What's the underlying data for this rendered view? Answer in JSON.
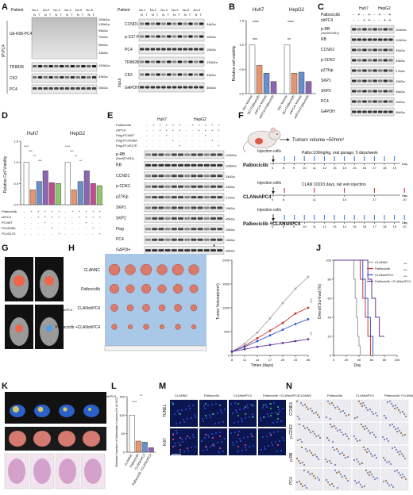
{
  "panel_letters": [
    "A",
    "B",
    "C",
    "D",
    "E",
    "F",
    "G",
    "H",
    "I",
    "J",
    "K",
    "L",
    "M",
    "N"
  ],
  "panelA": {
    "patient_label": "Patient",
    "patients": [
      "No.1",
      "No.2",
      "No.3",
      "No.4",
      "No.5",
      "No.6"
    ],
    "nt": [
      "N",
      "T"
    ],
    "ip_label": "IP:PC4",
    "input_label": "Input",
    "left_rows": [
      "Ub-K68-PC4",
      "TRIM28",
      "CK2",
      "PC4"
    ],
    "left_kda": [
      "150kDa",
      "130kDa",
      "95kDa",
      "72kDa",
      "55kDa",
      "43kDa",
      "130kDa",
      "43kDa",
      "15kDa"
    ],
    "right_rows": [
      "CCND1",
      "p-S17-PC4",
      "PC4",
      "TRIM28",
      "CK2",
      "GAPDH"
    ],
    "right_kda": [
      "34kDa",
      "15kDa",
      "15kDa",
      "130kDa",
      "43kDa",
      "36kDa"
    ]
  },
  "panelB": {
    "cells": [
      "Huh7",
      "HepG2"
    ],
    "ylabel": "Relative cell viability",
    "yticks": [
      "0.0",
      "0.5",
      "1.0",
      "1.5"
    ],
    "groups": [
      "NC+Vehicle",
      "NC+Palbociclib",
      "shPC4+Vehicle",
      "shPC4+Palbociclib"
    ],
    "sig": [
      "****",
      "***",
      "****",
      "**"
    ],
    "chart_data": {
      "type": "bar",
      "categories": [
        "NC+Vehicle",
        "NC+Palbociclib",
        "shPC4+Vehicle",
        "shPC4+Palbociclib"
      ],
      "series": [
        {
          "name": "Huh7",
          "values": [
            1.0,
            0.58,
            0.42,
            0.25
          ]
        },
        {
          "name": "HepG2",
          "values": [
            1.0,
            0.42,
            0.44,
            0.25
          ]
        }
      ],
      "ylabel": "Relative cell viability",
      "ylim": [
        0,
        1.5
      ]
    }
  },
  "panelC": {
    "cells": [
      "Huh7",
      "HepG2"
    ],
    "treat_rows": [
      "Palbociclib",
      "shPC4"
    ],
    "treat_signs": [
      [
        "-",
        "+",
        "-",
        "+",
        "-",
        "+",
        "-",
        "+"
      ],
      [
        "-",
        "-",
        "+",
        "+",
        "-",
        "-",
        "+",
        "+"
      ]
    ],
    "rows": [
      "p-RB",
      "RB",
      "CCND1",
      "p-CDK2",
      "p27Kip",
      "SKP1",
      "SKP2",
      "PC4",
      "GAPDH"
    ],
    "sub_label": "(Ser807/811)",
    "kda": [
      "110kDa",
      "110kDa",
      "34kDa",
      "33kDa",
      "27kDa",
      "19kDa",
      "45kDa",
      "15kDa",
      "36kDa"
    ]
  },
  "panelD": {
    "cells": [
      "Huh7",
      "HepG2"
    ],
    "ylabel": "Relative Cell Viability",
    "yticks": [
      "0.0",
      "0.5",
      "1.0",
      "1.5"
    ],
    "sig": [
      "****",
      "***",
      "**",
      "***",
      "****",
      "***",
      "**",
      "**"
    ],
    "row_labels": [
      "Palbociclib",
      "shPC4",
      "PC4WT",
      "PC4S56A",
      "PC4S17E"
    ],
    "signs": [
      [
        "-",
        "+",
        "+",
        "+",
        "+",
        "+",
        "-",
        "+",
        "+",
        "+",
        "+",
        "+"
      ],
      [
        "-",
        "-",
        "+",
        "+",
        "+",
        "+",
        "-",
        "-",
        "+",
        "+",
        "+",
        "+"
      ],
      [
        "-",
        "-",
        "-",
        "+",
        "-",
        "-",
        "-",
        "-",
        "-",
        "+",
        "-",
        "-"
      ],
      [
        "-",
        "-",
        "-",
        "-",
        "+",
        "-",
        "-",
        "-",
        "-",
        "-",
        "+",
        "-"
      ],
      [
        "-",
        "-",
        "-",
        "-",
        "-",
        "+",
        "-",
        "-",
        "-",
        "-",
        "-",
        "+"
      ]
    ],
    "chart_data": {
      "type": "bar",
      "categories": [
        "Vehicle",
        "Palbociclib",
        "shPC4",
        "PC4WT",
        "PC4S56A",
        "PC4S17E"
      ],
      "series": [
        {
          "name": "Huh7",
          "values": [
            1.0,
            0.35,
            0.55,
            0.8,
            0.52,
            0.5
          ]
        },
        {
          "name": "HepG2",
          "values": [
            1.0,
            0.35,
            0.55,
            0.8,
            0.5,
            0.45
          ]
        }
      ],
      "ylabel": "Relative Cell Viability",
      "ylim": [
        0,
        1.5
      ]
    }
  },
  "panelE": {
    "cells": [
      "Huh7",
      "HepG2"
    ],
    "treat_rows": [
      "Palbociclib",
      "shPC4",
      "Flag-PC4WT",
      "Flag-PC4S56A",
      "Flag-PC4S17E"
    ],
    "rows": [
      "p-RB",
      "RB",
      "CCND1",
      "p-CDK2",
      "p27Kip",
      "SKP1",
      "SKP2",
      "Flag",
      "PC4",
      "GAPDH"
    ],
    "sub_label": "(Ser807/811)",
    "kda": [
      "110kDa",
      "110kDa",
      "34kDa",
      "33kDa",
      "27kDa",
      "19kDa",
      "45kDa",
      "15kDa",
      "15kDa",
      "36kDa"
    ]
  },
  "panelF": {
    "tumor_text": "Tumors volume ≈50mm³",
    "rows": [
      {
        "name": "Palbociclib",
        "injection": "Injection cells",
        "note": "Palbo:100mg/kg, oral gavage, 5 days/week",
        "note_color": "#2a6fd6",
        "ticks": [
          "0",
          "8",
          "9",
          "10",
          "11",
          "12",
          "13",
          "14",
          "15",
          "16",
          "17",
          "18",
          "19"
        ],
        "arrow_color": "#2a6fd6"
      },
      {
        "name": "CLANshPC4",
        "injection": "Injection cells",
        "note": "CLAN:1OD/3 days, tail vein injection",
        "note_color": "#cc2222",
        "ticks": [
          "0",
          "8",
          "11",
          "14",
          "17",
          "20"
        ],
        "arrow_color": "#cc2222"
      },
      {
        "name": "Palbociclib +CLANshPC4",
        "injection": "Injection cells",
        "note": "",
        "note_color": "#111",
        "ticks": [
          "0",
          "8",
          "9",
          "10",
          "11",
          "12",
          "13",
          "14",
          "15",
          "16",
          "17",
          "18",
          "19",
          "20"
        ],
        "arrow_color": "#2a6fd6"
      }
    ],
    "day_label": "Day"
  },
  "panelG": {
    "labels": [
      "CLANNC",
      "Palbociclib",
      "CLANshPC4",
      "Palbociclib +CLANshPC4"
    ]
  },
  "panelH": {
    "labels": [
      "CLANNC",
      "Palbociclib",
      "CLANshPC4",
      "Palbociclib +CLANshPC4"
    ]
  },
  "panelI": {
    "ylabel": "Tumor Volume(mm³)",
    "xlabel": "Times (days)",
    "xticks": [
      "8",
      "11",
      "14",
      "17",
      "20",
      "23",
      "26"
    ],
    "yticks": [
      "0",
      "500",
      "1000",
      "1500",
      "2000"
    ],
    "sig": [
      "****",
      "***"
    ],
    "chart_data": {
      "type": "line",
      "x": [
        8,
        11,
        14,
        17,
        20,
        23,
        26
      ],
      "series": [
        {
          "name": "CLANNC",
          "values": [
            80,
            250,
            480,
            780,
            1100,
            1400,
            1650
          ],
          "color": "#aaaaaa"
        },
        {
          "name": "Palbociclib",
          "values": [
            80,
            200,
            360,
            520,
            680,
            880,
            1000
          ],
          "color": "#cc3333"
        },
        {
          "name": "CLANshPC4",
          "values": [
            80,
            180,
            300,
            420,
            540,
            660,
            760
          ],
          "color": "#3355cc"
        },
        {
          "name": "Palbociclib+CLANshPC4",
          "values": [
            80,
            130,
            180,
            220,
            260,
            300,
            340
          ],
          "color": "#663399"
        }
      ],
      "xlabel": "Times (days)",
      "ylabel": "Tumor Volume(mm³)",
      "ylim": [
        0,
        2000
      ]
    }
  },
  "panelJ": {
    "ylabel": "Overall Survival (%)",
    "xlabel": "Day",
    "xticks": [
      "0",
      "20",
      "40",
      "60",
      "80",
      "100"
    ],
    "yticks": [
      "0",
      "20",
      "40",
      "60",
      "80",
      "100"
    ],
    "legend": [
      "CLANNC",
      "Palbociclib",
      "CLANshPC4",
      "Palbociclib +CLANshPC4"
    ],
    "sig": [
      "***",
      "***",
      "***"
    ],
    "chart_data": {
      "type": "line",
      "series": [
        {
          "name": "CLANNC",
          "x": [
            0,
            30,
            32,
            34,
            36,
            38,
            40,
            42
          ],
          "values": [
            100,
            100,
            80,
            60,
            40,
            20,
            10,
            0
          ],
          "color": "#999999"
        },
        {
          "name": "Palbociclib",
          "x": [
            0,
            38,
            42,
            46,
            50,
            54,
            58
          ],
          "values": [
            100,
            100,
            80,
            60,
            40,
            20,
            0
          ],
          "color": "#cc3333"
        },
        {
          "name": "CLANshPC4",
          "x": [
            0,
            42,
            46,
            50,
            54,
            58,
            62
          ],
          "values": [
            100,
            100,
            80,
            60,
            40,
            20,
            0
          ],
          "color": "#3355cc"
        },
        {
          "name": "Palbociclib +CLANshPC4",
          "x": [
            0,
            48,
            54,
            60,
            66,
            72,
            80
          ],
          "values": [
            100,
            100,
            80,
            60,
            40,
            20,
            20
          ],
          "color": "#663399"
        }
      ],
      "xlabel": "Day",
      "ylabel": "Overall Survival (%)",
      "xlim": [
        0,
        100
      ],
      "ylim": [
        0,
        100
      ]
    }
  },
  "panelK": {
    "labels": [
      "CLANNC",
      "Palbociclib",
      "CLANshPC4",
      "Palbociclib +CLANshPC4"
    ]
  },
  "panelL": {
    "ylabel": "Relative Number of Metastatic Lesions (% of NC)",
    "yticks": [
      "0",
      "50",
      "100",
      "150"
    ],
    "groups": [
      "CLANNC",
      "Palbociclib",
      "CLANshPC4",
      "Palbociclib +CLANshPC4"
    ],
    "sig": [
      "****",
      "**"
    ],
    "chart_data": {
      "type": "bar",
      "categories": [
        "CLANNC",
        "Palbociclib",
        "CLANshPC4",
        "Palbociclib +CLANshPC4"
      ],
      "values": [
        100,
        30,
        27,
        12
      ],
      "ylabel": "Relative Number of Metastatic Lesions (% of NC)",
      "ylim": [
        0,
        150
      ]
    }
  },
  "panelM": {
    "cols": [
      "CLANNC",
      "Palbociclib",
      "CLANshPC4",
      "Palbociclib +CLANshPC4"
    ],
    "rows": [
      "TUNEL",
      "Ki67"
    ]
  },
  "panelN": {
    "cols": [
      "CLANNC",
      "Palbociclib",
      "CLANshPC4",
      "Palbociclib +CLANshPC4"
    ],
    "rows": [
      "CCND1",
      "p-CDK2",
      "p-RB",
      "PC4"
    ]
  },
  "colors": {
    "blue_arrow": "#2a6fd6",
    "red_arrow": "#cc2222",
    "nuclei": "#1a2a8a",
    "tunel": "#22aa44",
    "tumor": "#e08070"
  }
}
